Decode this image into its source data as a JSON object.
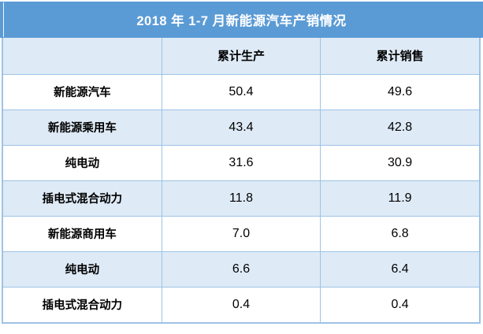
{
  "title": "2018 年 1-7 月新能源汽车产销情况",
  "table": {
    "columns": [
      "",
      "累计生产",
      "累计销售"
    ],
    "rows": [
      {
        "label": "新能源汽车",
        "production": "50.4",
        "sales": "49.6"
      },
      {
        "label": "新能源乘用车",
        "production": "43.4",
        "sales": "42.8"
      },
      {
        "label": "纯电动",
        "production": "31.6",
        "sales": "30.9"
      },
      {
        "label": "插电式混合动力",
        "production": "11.8",
        "sales": "11.9"
      },
      {
        "label": "新能源商用车",
        "production": "7.0",
        "sales": "6.8"
      },
      {
        "label": "纯电动",
        "production": "6.6",
        "sales": "6.4"
      },
      {
        "label": "插电式混合动力",
        "production": "0.4",
        "sales": "0.4"
      }
    ]
  },
  "colors": {
    "title_bg": "#5B9BD5",
    "title_text": "#FFFFFF",
    "header_bg": "#DEEAF6",
    "row_alt_bg": "#DEEAF6",
    "border": "#9DC3E6",
    "text": "#000000"
  },
  "chart_data": {
    "type": "table",
    "title": "2018 年 1-7 月新能源汽车产销情况",
    "categories": [
      "新能源汽车",
      "新能源乘用车",
      "纯电动",
      "插电式混合动力",
      "新能源商用车",
      "纯电动",
      "插电式混合动力"
    ],
    "series": [
      {
        "name": "累计生产",
        "values": [
          50.4,
          43.4,
          31.6,
          11.8,
          7.0,
          6.6,
          0.4
        ]
      },
      {
        "name": "累计销售",
        "values": [
          49.6,
          42.8,
          30.9,
          11.9,
          6.8,
          6.4,
          0.4
        ]
      }
    ],
    "legend_position": "header-row",
    "grid": true
  }
}
